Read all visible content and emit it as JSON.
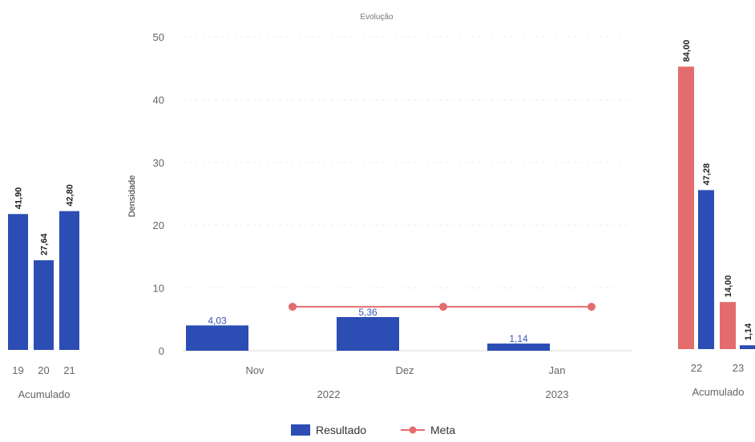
{
  "chart_data": [
    {
      "type": "bar",
      "panel": "left",
      "categories": [
        "19",
        "20",
        "21"
      ],
      "values": [
        41.9,
        27.64,
        42.8
      ],
      "value_labels": [
        "41,90",
        "27,64",
        "42,80"
      ],
      "group_label": "Acumulado",
      "color": "#2b4db4"
    },
    {
      "type": "bar+line",
      "panel": "main",
      "title": "Evolução",
      "ylabel": "Densidade",
      "ylim": [
        0,
        50
      ],
      "yticks": [
        0,
        10,
        20,
        30,
        40,
        50
      ],
      "categories": [
        "Nov",
        "Dez",
        "Jan"
      ],
      "year_labels": [
        "2022",
        "2023"
      ],
      "series": [
        {
          "name": "Resultado",
          "kind": "bar",
          "values": [
            4.03,
            5.36,
            1.14
          ],
          "value_labels": [
            "4,03",
            "5,36",
            "1,14"
          ],
          "color": "#2b4db4"
        },
        {
          "name": "Meta",
          "kind": "line",
          "values": [
            7,
            7,
            7
          ],
          "color": "#e46c6c"
        }
      ],
      "legend": {
        "position": "bottom",
        "items": [
          "Resultado",
          "Meta"
        ]
      }
    },
    {
      "type": "bar",
      "panel": "right",
      "categories": [
        "22",
        "23"
      ],
      "series": [
        {
          "name": "Meta",
          "values": [
            84.0,
            14.0
          ],
          "value_labels": [
            "84,00",
            "14,00"
          ],
          "color": "#e46c6c"
        },
        {
          "name": "Resultado",
          "values": [
            47.28,
            1.14
          ],
          "value_labels": [
            "47,28",
            "1,14"
          ],
          "color": "#2b4db4"
        }
      ],
      "group_label": "Acumulado"
    }
  ]
}
